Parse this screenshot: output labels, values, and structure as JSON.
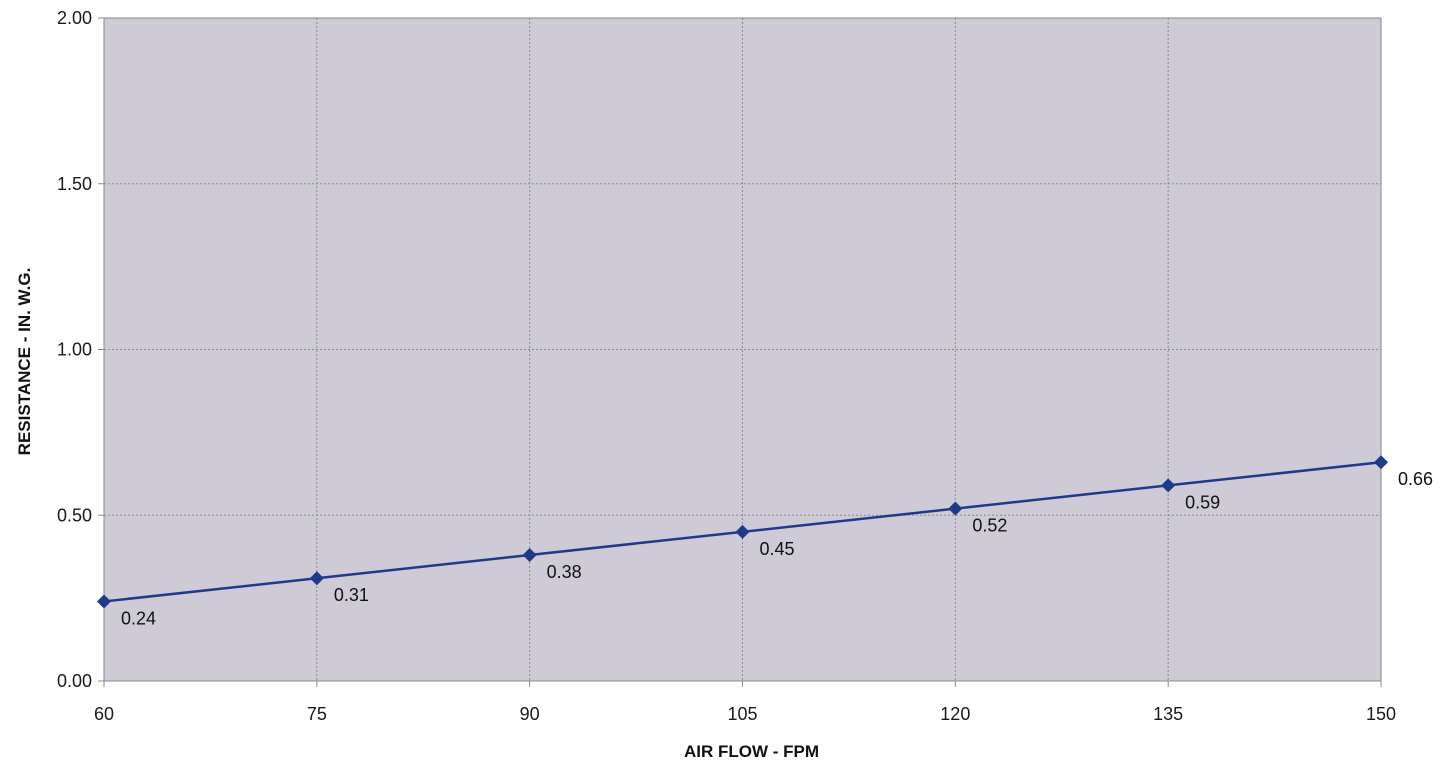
{
  "chart_data": {
    "type": "line",
    "title": "",
    "xlabel": "AIR FLOW - FPM",
    "ylabel": "RESISTANCE - IN. W.G.",
    "x": [
      60,
      75,
      90,
      105,
      120,
      135,
      150
    ],
    "x_tick_labels": [
      "60",
      "75",
      "90",
      "105",
      "120",
      "135",
      "150"
    ],
    "y_tick_values": [
      0,
      0.5,
      1.0,
      1.5,
      2.0
    ],
    "y_tick_labels": [
      "0.00",
      "0.50",
      "1.00",
      "1.50",
      "2.00"
    ],
    "xlim": [
      60,
      150
    ],
    "ylim": [
      0,
      2
    ],
    "grid": true,
    "legend": "none",
    "series": [
      {
        "values": [
          0.24,
          0.31,
          0.38,
          0.45,
          0.52,
          0.59,
          0.66
        ],
        "data_labels": [
          "0.24",
          "0.31",
          "0.38",
          "0.45",
          "0.52",
          "0.59",
          "0.66"
        ],
        "marker": "diamond"
      }
    ],
    "colors": {
      "plot_background": "#cfcbd6",
      "line": "#1f3a8a",
      "marker": "#1f3a8a",
      "grid": "#8a8a8a",
      "frame": "#8a8a8a"
    }
  }
}
